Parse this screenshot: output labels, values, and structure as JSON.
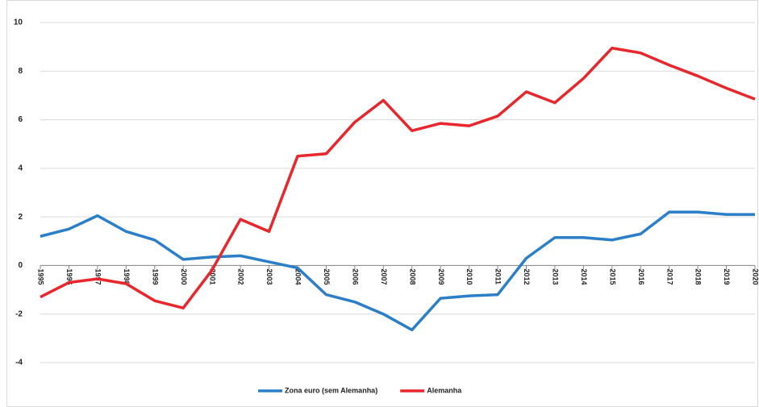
{
  "chart_data": {
    "type": "line",
    "x": [
      1995,
      1996,
      1997,
      1998,
      1999,
      2000,
      2001,
      2002,
      2003,
      2004,
      2005,
      2006,
      2007,
      2008,
      2009,
      2010,
      2011,
      2012,
      2013,
      2014,
      2015,
      2016,
      2017,
      2018,
      2019,
      2020
    ],
    "xlim": [
      1995,
      2020
    ],
    "series": [
      {
        "name": "Zona euro (sem Alemanha)",
        "color": "#2b7fc8",
        "values": [
          1.2,
          1.5,
          2.05,
          1.4,
          1.05,
          0.25,
          0.35,
          0.4,
          0.15,
          -0.1,
          -1.2,
          -1.5,
          -2.0,
          -2.65,
          -1.35,
          -1.25,
          -1.2,
          0.3,
          1.15,
          1.15,
          1.05,
          1.3,
          2.2,
          2.2,
          2.1,
          2.1
        ]
      },
      {
        "name": "Alemanha",
        "color": "#e8262b",
        "values": [
          -1.3,
          -0.7,
          -0.55,
          -0.75,
          -1.45,
          -1.75,
          -0.2,
          1.9,
          1.4,
          4.5,
          4.6,
          5.9,
          6.8,
          5.55,
          5.85,
          5.75,
          6.15,
          7.15,
          6.7,
          7.7,
          8.95,
          8.75,
          8.25,
          7.8,
          7.3,
          6.85
        ]
      }
    ],
    "ylim": [
      -4,
      10
    ],
    "yticks": [
      -4,
      -2,
      0,
      2,
      4,
      6,
      8,
      10
    ],
    "grid": true,
    "legend": "bottom"
  }
}
